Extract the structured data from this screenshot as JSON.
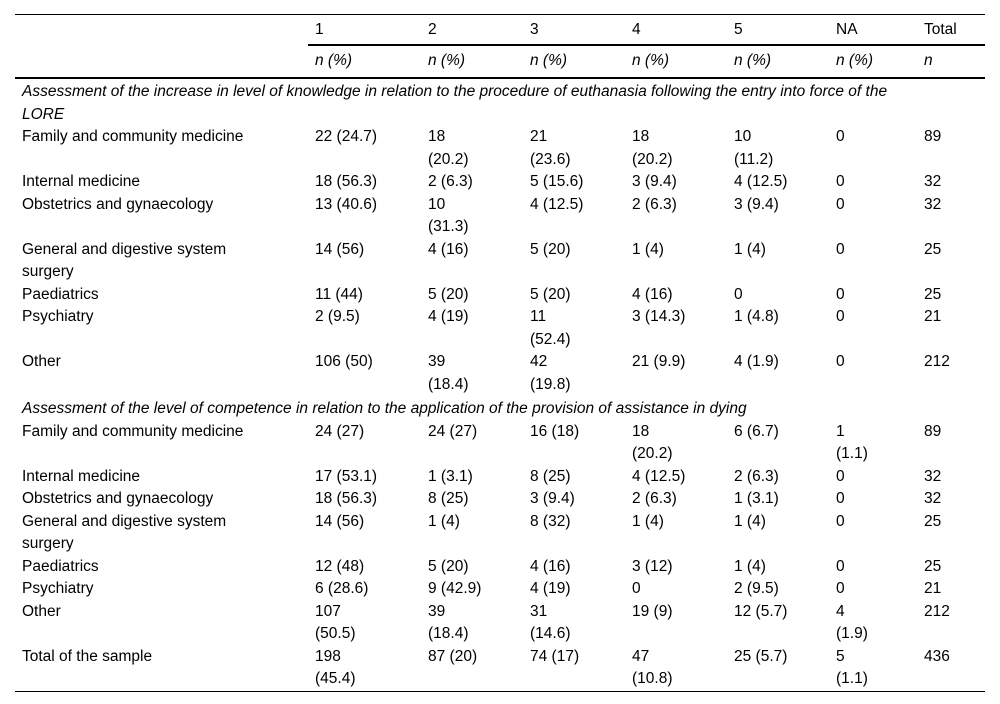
{
  "table": {
    "header": {
      "columns": [
        "1",
        "2",
        "3",
        "4",
        "5",
        "NA",
        "Total"
      ],
      "subheaders": [
        "n (%)",
        "n (%)",
        "n (%)",
        "n (%)",
        "n (%)",
        "n (%)",
        "n"
      ]
    },
    "sections": [
      {
        "title": "Assessment of the increase in level of knowledge in relation to the procedure of euthanasia following the entry into force of the\nLORE",
        "rows": [
          {
            "label": "Family and community medicine",
            "values": [
              "22 (24.7)",
              "18\n(20.2)",
              "21\n(23.6)",
              "18\n(20.2)",
              "10\n(11.2)",
              "0",
              "89"
            ]
          },
          {
            "label": "Internal medicine",
            "values": [
              "18 (56.3)",
              "2 (6.3)",
              "5 (15.6)",
              "3 (9.4)",
              "4 (12.5)",
              "0",
              "32"
            ]
          },
          {
            "label": "Obstetrics and gynaecology",
            "values": [
              "13 (40.6)",
              "10\n(31.3)",
              "4 (12.5)",
              "2 (6.3)",
              "3 (9.4)",
              "0",
              "32"
            ]
          },
          {
            "label": "General and digestive system\nsurgery",
            "values": [
              "14 (56)",
              "4 (16)",
              "5 (20)",
              "1 (4)",
              "1 (4)",
              "0",
              "25"
            ]
          },
          {
            "label": "Paediatrics",
            "values": [
              "11 (44)",
              "5 (20)",
              "5 (20)",
              "4 (16)",
              "0",
              "0",
              "25"
            ]
          },
          {
            "label": "Psychiatry",
            "values": [
              "2 (9.5)",
              "4 (19)",
              "11\n(52.4)",
              "3 (14.3)",
              "1 (4.8)",
              "0",
              "21"
            ]
          },
          {
            "label": "Other",
            "values": [
              "106 (50)",
              "39\n(18.4)",
              "42\n(19.8)",
              "21 (9.9)",
              "4 (1.9)",
              "0",
              "212"
            ]
          }
        ]
      },
      {
        "title": "Assessment of the level of competence in relation to the application of the provision of assistance in dying",
        "rows": [
          {
            "label": "Family and community medicine",
            "values": [
              "24 (27)",
              "24 (27)",
              "16 (18)",
              "18\n(20.2)",
              "6 (6.7)",
              "1\n(1.1)",
              "89"
            ]
          },
          {
            "label": "Internal medicine",
            "values": [
              "17 (53.1)",
              "1 (3.1)",
              "8 (25)",
              "4 (12.5)",
              "2 (6.3)",
              "0",
              "32"
            ]
          },
          {
            "label": "Obstetrics and gynaecology",
            "values": [
              "18 (56.3)",
              "8 (25)",
              "3 (9.4)",
              "2 (6.3)",
              "1 (3.1)",
              "0",
              "32"
            ]
          },
          {
            "label": "General and digestive system\nsurgery",
            "values": [
              "14 (56)",
              "1 (4)",
              "8 (32)",
              "1 (4)",
              "1 (4)",
              "0",
              "25"
            ]
          },
          {
            "label": "Paediatrics",
            "values": [
              "12 (48)",
              "5 (20)",
              "4 (16)",
              "3 (12)",
              "1 (4)",
              "0",
              "25"
            ]
          },
          {
            "label": "Psychiatry",
            "values": [
              "6 (28.6)",
              "9 (42.9)",
              "4 (19)",
              "0",
              "2 (9.5)",
              "0",
              "21"
            ]
          },
          {
            "label": "Other",
            "values": [
              "107\n(50.5)",
              "39\n(18.4)",
              "31\n(14.6)",
              "19 (9)",
              "12 (5.7)",
              "4\n(1.9)",
              "212"
            ]
          },
          {
            "label": "Total of the sample",
            "values": [
              "198\n(45.4)",
              "87 (20)",
              "74 (17)",
              "47\n(10.8)",
              "25 (5.7)",
              "5\n(1.1)",
              "436"
            ]
          }
        ]
      }
    ],
    "colors": {
      "text": "#000000",
      "background": "#ffffff",
      "rule": "#000000"
    }
  }
}
